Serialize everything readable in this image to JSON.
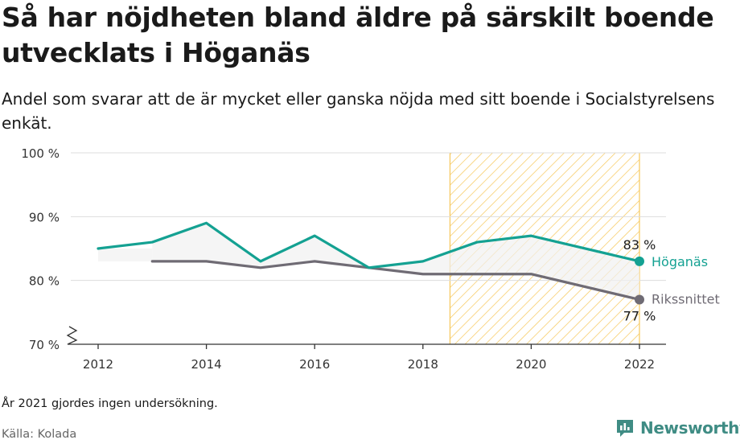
{
  "header": {
    "title": "Så har nöjdheten bland äldre på särskilt boende utvecklats i Höganäs",
    "subtitle": "Andel som svarar att de är mycket eller ganska nöjda med sitt boende i Socialstyrelsens enkät."
  },
  "footer": {
    "note": "År 2021 gjordes ingen undersökning.",
    "source": "Källa: Kolada",
    "brand": "Newsworthy"
  },
  "colors": {
    "hoganas": "#14a192",
    "riket": "#6f6b74",
    "highlight": "#f6c75a",
    "brand": "#3f8c84"
  },
  "chart_data": {
    "type": "line",
    "x": [
      2012,
      2013,
      2014,
      2015,
      2016,
      2017,
      2018,
      2019,
      2020,
      2022
    ],
    "series": [
      {
        "name": "Höganäs",
        "values": [
          85,
          86,
          89,
          83,
          87,
          82,
          83,
          86,
          87,
          83
        ],
        "end_label": "83 %"
      },
      {
        "name": "Rikssnittet",
        "values": [
          null,
          83,
          83,
          82,
          83,
          82,
          81,
          81,
          81,
          77
        ],
        "end_label": "77 %"
      }
    ],
    "ylim": [
      70,
      100
    ],
    "y_ticks": [
      {
        "value": 70,
        "label": "70 %"
      },
      {
        "value": 80,
        "label": "80 %"
      },
      {
        "value": 90,
        "label": "90 %"
      },
      {
        "value": 100,
        "label": "100 %"
      }
    ],
    "x_ticks": [
      {
        "value": 2012,
        "label": "2012"
      },
      {
        "value": 2014,
        "label": "2014"
      },
      {
        "value": 2016,
        "label": "2016"
      },
      {
        "value": 2018,
        "label": "2018"
      },
      {
        "value": 2020,
        "label": "2020"
      },
      {
        "value": 2022,
        "label": "2022"
      }
    ],
    "highlight_range": [
      2018.5,
      2022
    ],
    "y_axis_break": true,
    "grid": true,
    "legend": "direct labels at line ends"
  }
}
